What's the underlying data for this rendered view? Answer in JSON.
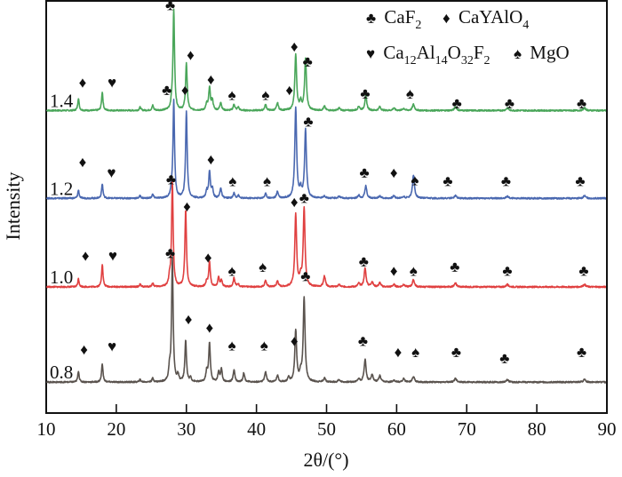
{
  "chart_data": {
    "type": "line",
    "title": "",
    "xlabel": "2θ/(°)",
    "ylabel": "Intensity",
    "xlim": [
      10,
      90
    ],
    "ylim": [
      0,
      100
    ],
    "xticks": [
      10,
      20,
      30,
      40,
      50,
      60,
      70,
      80,
      90
    ],
    "xtick_labels": [
      "10",
      "20",
      "30",
      "40",
      "50",
      "60",
      "70",
      "80",
      "90"
    ],
    "grid": false,
    "legend": {
      "placement": "top-right",
      "entries": [
        {
          "symbol": "club",
          "glyph": "♣",
          "label": "CaF",
          "sub": "2"
        },
        {
          "symbol": "diamond",
          "glyph": "♦",
          "label": "CaYAlO",
          "sub": "4"
        },
        {
          "symbol": "heart",
          "glyph": "♥",
          "label_parts": [
            [
              "Ca",
              "12"
            ],
            [
              "Al",
              "14"
            ],
            [
              "O",
              "32"
            ],
            [
              "F",
              "2"
            ]
          ],
          "label": "Ca12Al14O32F2"
        },
        {
          "symbol": "spade",
          "glyph": "♠",
          "label": "MgO",
          "sub": ""
        }
      ]
    },
    "series": [
      {
        "name": "1.4",
        "color": "#4aa65a",
        "offset": 73.4,
        "peaks": [
          [
            14.6,
            3.0
          ],
          [
            18.0,
            4.5
          ],
          [
            23.4,
            0.8
          ],
          [
            25.2,
            1.2
          ],
          [
            27.9,
            1.2
          ],
          [
            28.2,
            24.5
          ],
          [
            30.0,
            11.5
          ],
          [
            32.9,
            1.5
          ],
          [
            33.3,
            5.5
          ],
          [
            33.7,
            2.5
          ],
          [
            34.9,
            2.0
          ],
          [
            36.8,
            1.5
          ],
          [
            37.4,
            0.8
          ],
          [
            41.3,
            1.4
          ],
          [
            43.0,
            1.8
          ],
          [
            45.6,
            13.5
          ],
          [
            46.3,
            2.0
          ],
          [
            47.0,
            12.5
          ],
          [
            49.7,
            1.0
          ],
          [
            51.8,
            0.6
          ],
          [
            54.6,
            1.0
          ],
          [
            55.6,
            3.5
          ],
          [
            57.6,
            0.9
          ],
          [
            59.6,
            0.6
          ],
          [
            61.0,
            0.5
          ],
          [
            62.4,
            1.5
          ],
          [
            68.4,
            0.9
          ],
          [
            75.8,
            0.6
          ],
          [
            86.8,
            0.6
          ]
        ]
      },
      {
        "name": "1.2",
        "color": "#4a68b0",
        "offset": 52.1,
        "peaks": [
          [
            14.6,
            2.0
          ],
          [
            18.0,
            3.5
          ],
          [
            23.4,
            0.6
          ],
          [
            25.2,
            0.9
          ],
          [
            27.9,
            1.5
          ],
          [
            28.2,
            23.5
          ],
          [
            30.0,
            21.0
          ],
          [
            32.9,
            1.6
          ],
          [
            33.3,
            6.5
          ],
          [
            33.7,
            2.2
          ],
          [
            34.9,
            2.5
          ],
          [
            36.8,
            1.2
          ],
          [
            37.4,
            0.7
          ],
          [
            41.3,
            1.1
          ],
          [
            43.0,
            1.6
          ],
          [
            45.6,
            22.0
          ],
          [
            46.3,
            2.0
          ],
          [
            47.0,
            16.5
          ],
          [
            49.7,
            0.6
          ],
          [
            51.8,
            0.5
          ],
          [
            54.6,
            0.7
          ],
          [
            55.6,
            3.0
          ],
          [
            57.6,
            0.6
          ],
          [
            59.6,
            0.6
          ],
          [
            61.0,
            0.4
          ],
          [
            62.4,
            5.5
          ],
          [
            68.4,
            0.7
          ],
          [
            75.8,
            0.5
          ],
          [
            86.8,
            0.6
          ]
        ]
      },
      {
        "name": "1.0",
        "color": "#e04040",
        "offset": 30.6,
        "peaks": [
          [
            14.6,
            2.0
          ],
          [
            18.0,
            5.5
          ],
          [
            23.4,
            0.6
          ],
          [
            25.2,
            0.9
          ],
          [
            27.6,
            1.8
          ],
          [
            28.0,
            25.5
          ],
          [
            29.9,
            18.5
          ],
          [
            32.9,
            1.3
          ],
          [
            33.3,
            6.0
          ],
          [
            34.6,
            2.2
          ],
          [
            35.0,
            1.5
          ],
          [
            36.8,
            2.2
          ],
          [
            37.4,
            0.7
          ],
          [
            41.3,
            1.6
          ],
          [
            43.0,
            1.4
          ],
          [
            45.6,
            17.5
          ],
          [
            46.3,
            2.2
          ],
          [
            46.8,
            19.0
          ],
          [
            49.7,
            2.6
          ],
          [
            51.8,
            0.5
          ],
          [
            54.6,
            0.8
          ],
          [
            55.5,
            4.5
          ],
          [
            56.5,
            1.2
          ],
          [
            57.6,
            1.0
          ],
          [
            59.6,
            0.6
          ],
          [
            61.0,
            0.6
          ],
          [
            62.4,
            1.7
          ],
          [
            68.4,
            0.9
          ],
          [
            75.8,
            0.6
          ],
          [
            86.8,
            0.6
          ]
        ]
      },
      {
        "name": "0.8",
        "color": "#5a534e",
        "offset": 7.5,
        "peaks": [
          [
            14.6,
            2.7
          ],
          [
            18.0,
            4.5
          ],
          [
            23.4,
            0.6
          ],
          [
            25.2,
            0.9
          ],
          [
            27.6,
            3.0
          ],
          [
            28.0,
            30.0
          ],
          [
            28.8,
            1.5
          ],
          [
            29.9,
            10.0
          ],
          [
            30.6,
            1.0
          ],
          [
            32.9,
            2.5
          ],
          [
            33.3,
            9.5
          ],
          [
            34.6,
            2.4
          ],
          [
            35.0,
            3.0
          ],
          [
            36.8,
            3.0
          ],
          [
            38.2,
            2.2
          ],
          [
            41.3,
            2.5
          ],
          [
            43.0,
            1.6
          ],
          [
            44.6,
            1.0
          ],
          [
            45.6,
            12.5
          ],
          [
            46.3,
            2.0
          ],
          [
            46.8,
            20.5
          ],
          [
            49.7,
            1.0
          ],
          [
            51.8,
            0.6
          ],
          [
            54.6,
            0.8
          ],
          [
            55.5,
            5.5
          ],
          [
            56.5,
            1.8
          ],
          [
            57.6,
            1.5
          ],
          [
            59.6,
            0.5
          ],
          [
            61.0,
            0.8
          ],
          [
            62.4,
            1.4
          ],
          [
            68.4,
            0.9
          ],
          [
            75.8,
            0.6
          ],
          [
            86.8,
            0.6
          ]
        ]
      }
    ],
    "markers": [
      {
        "series": "1.4",
        "items": [
          [
            15.2,
            80.3,
            "diamond"
          ],
          [
            19.4,
            80.3,
            "heart"
          ],
          [
            27.7,
            99.0,
            "club"
          ],
          [
            30.6,
            87.0,
            "diamond"
          ],
          [
            33.5,
            81.0,
            "diamond"
          ],
          [
            36.5,
            77.3,
            "spade"
          ],
          [
            41.3,
            77.3,
            "spade"
          ],
          [
            45.4,
            89.0,
            "diamond"
          ],
          [
            47.3,
            85.3,
            "club"
          ],
          [
            55.5,
            77.6,
            "club"
          ],
          [
            61.9,
            77.6,
            "spade"
          ],
          [
            68.6,
            75.2,
            "club"
          ],
          [
            76.1,
            75.2,
            "club"
          ],
          [
            86.4,
            75.2,
            "club"
          ]
        ]
      },
      {
        "series": "1.2",
        "items": [
          [
            15.2,
            61.0,
            "diamond"
          ],
          [
            19.3,
            58.4,
            "heart"
          ],
          [
            27.2,
            78.4,
            "club"
          ],
          [
            29.8,
            78.4,
            "diamond"
          ],
          [
            33.5,
            61.6,
            "diamond"
          ],
          [
            36.6,
            56.4,
            "spade"
          ],
          [
            41.5,
            56.4,
            "spade"
          ],
          [
            44.7,
            78.4,
            "diamond"
          ],
          [
            47.4,
            70.8,
            "club"
          ],
          [
            55.4,
            58.4,
            "club"
          ],
          [
            59.6,
            58.4,
            "diamond"
          ],
          [
            62.6,
            56.6,
            "spade"
          ],
          [
            67.3,
            56.4,
            "club"
          ],
          [
            75.6,
            56.4,
            "club"
          ],
          [
            86.2,
            56.4,
            "club"
          ]
        ]
      },
      {
        "series": "1.0",
        "items": [
          [
            15.6,
            38.3,
            "diamond"
          ],
          [
            19.5,
            38.3,
            "heart"
          ],
          [
            27.8,
            56.8,
            "club"
          ],
          [
            30.1,
            50.2,
            "diamond"
          ],
          [
            33.1,
            37.8,
            "diamond"
          ],
          [
            36.5,
            34.6,
            "spade"
          ],
          [
            40.9,
            35.6,
            "spade"
          ],
          [
            45.4,
            51.3,
            "diamond"
          ],
          [
            46.8,
            52.3,
            "club"
          ],
          [
            55.3,
            36.8,
            "club"
          ],
          [
            59.6,
            34.6,
            "diamond"
          ],
          [
            62.4,
            34.6,
            "spade"
          ],
          [
            68.3,
            35.6,
            "club"
          ],
          [
            75.8,
            34.6,
            "club"
          ],
          [
            86.7,
            34.6,
            "club"
          ]
        ]
      },
      {
        "series": "0.8",
        "items": [
          [
            15.4,
            15.5,
            "diamond"
          ],
          [
            19.4,
            16.3,
            "heart"
          ],
          [
            27.7,
            38.9,
            "club"
          ],
          [
            30.3,
            22.8,
            "diamond"
          ],
          [
            33.3,
            20.8,
            "diamond"
          ],
          [
            36.5,
            16.5,
            "spade"
          ],
          [
            41.1,
            16.5,
            "spade"
          ],
          [
            45.4,
            17.6,
            "diamond"
          ],
          [
            47.0,
            33.3,
            "club"
          ],
          [
            55.2,
            17.6,
            "club"
          ],
          [
            60.2,
            14.9,
            "diamond"
          ],
          [
            62.7,
            14.9,
            "spade"
          ],
          [
            68.5,
            14.9,
            "club"
          ],
          [
            75.4,
            13.4,
            "club"
          ],
          [
            86.4,
            14.9,
            "club"
          ]
        ]
      }
    ],
    "series_labels": [
      {
        "series": "1.4",
        "text": "1.4"
      },
      {
        "series": "1.2",
        "text": "1.2"
      },
      {
        "series": "1.0",
        "text": "1.0"
      },
      {
        "series": "0.8",
        "text": "0.8"
      }
    ]
  }
}
